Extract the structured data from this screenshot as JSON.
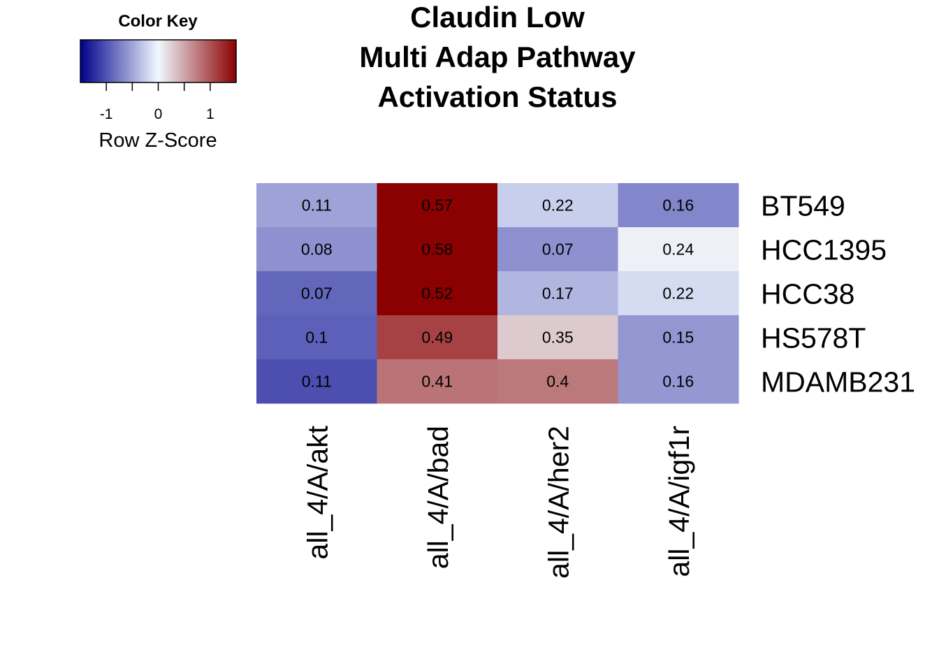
{
  "chart_data": {
    "type": "heatmap",
    "title": [
      "Claudin Low",
      "Multi Adap Pathway",
      "Activation Status"
    ],
    "columns": [
      "all_4/A/akt",
      "all_4/A/bad",
      "all_4/A/her2",
      "all_4/A/igf1r"
    ],
    "rows": [
      "BT549",
      "HCC1395",
      "HCC38",
      "HS578T",
      "MDAMB231"
    ],
    "values": [
      [
        0.11,
        0.57,
        0.22,
        0.16
      ],
      [
        0.08,
        0.58,
        0.07,
        0.24
      ],
      [
        0.07,
        0.52,
        0.17,
        0.22
      ],
      [
        0.1,
        0.49,
        0.35,
        0.15
      ],
      [
        0.11,
        0.41,
        0.4,
        0.16
      ]
    ],
    "cell_labels": [
      [
        "0.11",
        "0.57",
        "0.22",
        "0.16"
      ],
      [
        "0.08",
        "0.58",
        "0.07",
        "0.24"
      ],
      [
        "0.07",
        "0.52",
        "0.17",
        "0.22"
      ],
      [
        "0.1",
        "0.49",
        "0.35",
        "0.15"
      ],
      [
        "0.11",
        "0.41",
        "0.4",
        "0.16"
      ]
    ],
    "z_scores": [
      [
        -0.52,
        1.5,
        -0.25,
        -0.69
      ],
      [
        -0.62,
        1.5,
        -0.62,
        0.05
      ],
      [
        -0.88,
        1.5,
        -0.4,
        -0.17
      ],
      [
        -0.92,
        1.1,
        0.28,
        -0.59
      ],
      [
        -1.02,
        0.8,
        0.77,
        -0.58
      ]
    ],
    "color_key": {
      "title": "Color Key",
      "label": "Row Z-Score",
      "range": [
        -1.5,
        1.5
      ],
      "ticks": [
        "-1",
        "0",
        "1"
      ],
      "colors": [
        "#00008b",
        "#f0f8ff",
        "#8b0000"
      ]
    }
  }
}
